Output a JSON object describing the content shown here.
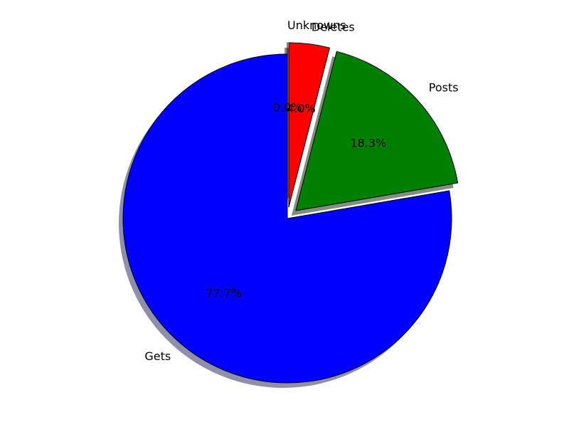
{
  "chart_data": {
    "type": "pie",
    "title": "",
    "start_angle_deg": 90,
    "direction": "clockwise",
    "shadow": true,
    "slices": [
      {
        "label": "Unknowns",
        "value": 0.0,
        "pct_label": "0.0%",
        "color": "#ff0000",
        "explode": 0.07
      },
      {
        "label": "Deletes",
        "value": 4.0,
        "pct_label": "4.0%",
        "color": "#ff0000",
        "explode": 0.07
      },
      {
        "label": "Posts",
        "value": 18.3,
        "pct_label": "18.3%",
        "color": "#008000",
        "explode": 0.07
      },
      {
        "label": "Gets",
        "value": 77.7,
        "pct_label": "77.7%",
        "color": "#0000ff",
        "explode": 0.0
      }
    ]
  }
}
